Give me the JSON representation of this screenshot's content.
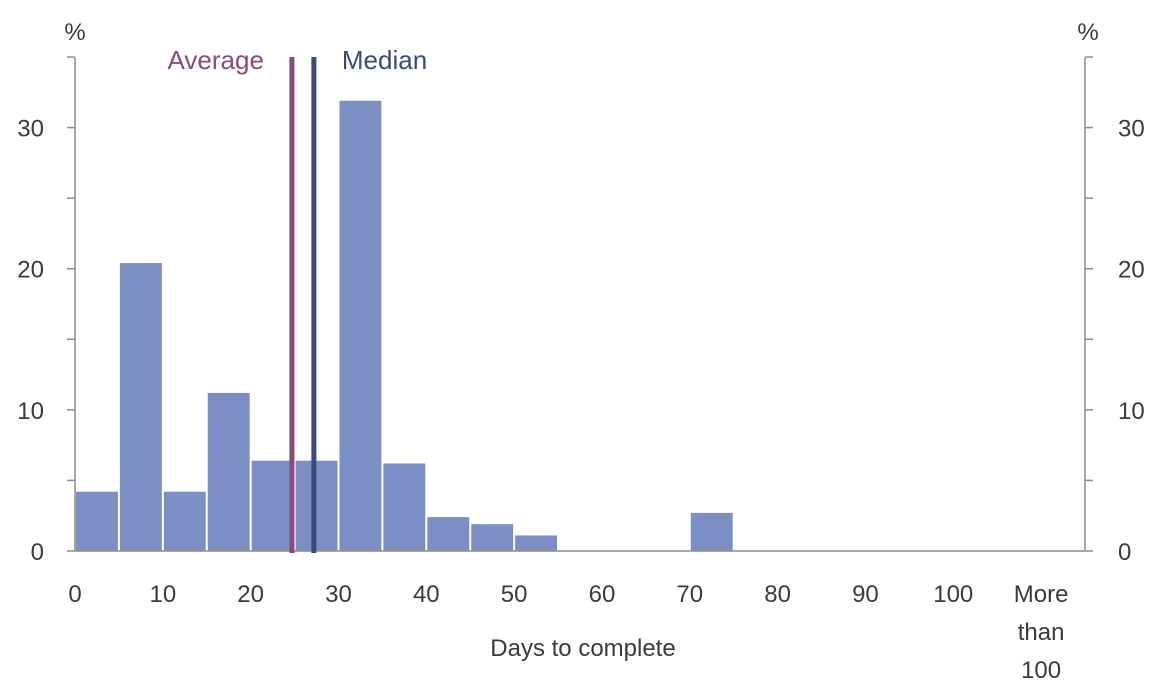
{
  "chart_data": {
    "type": "bar",
    "x_unit": "days",
    "bin_width": 5,
    "bins": [
      {
        "x_start": 0,
        "x_end": 5,
        "value": 4.2
      },
      {
        "x_start": 5,
        "x_end": 10,
        "value": 20.4
      },
      {
        "x_start": 10,
        "x_end": 15,
        "value": 4.2
      },
      {
        "x_start": 15,
        "x_end": 20,
        "value": 11.2
      },
      {
        "x_start": 20,
        "x_end": 25,
        "value": 6.4
      },
      {
        "x_start": 25,
        "x_end": 30,
        "value": 6.4
      },
      {
        "x_start": 30,
        "x_end": 35,
        "value": 31.9
      },
      {
        "x_start": 35,
        "x_end": 40,
        "value": 6.2
      },
      {
        "x_start": 40,
        "x_end": 45,
        "value": 2.4
      },
      {
        "x_start": 45,
        "x_end": 50,
        "value": 1.9
      },
      {
        "x_start": 50,
        "x_end": 55,
        "value": 1.1
      },
      {
        "x_start": 55,
        "x_end": 60,
        "value": 0
      },
      {
        "x_start": 60,
        "x_end": 65,
        "value": 0
      },
      {
        "x_start": 65,
        "x_end": 70,
        "value": 0
      },
      {
        "x_start": 70,
        "x_end": 75,
        "value": 2.7
      },
      {
        "x_start": 75,
        "x_end": 80,
        "value": 0
      },
      {
        "x_start": 80,
        "x_end": 85,
        "value": 0
      },
      {
        "x_start": 85,
        "x_end": 90,
        "value": 0
      },
      {
        "x_start": 90,
        "x_end": 95,
        "value": 0
      },
      {
        "x_start": 95,
        "x_end": 100,
        "value": 0
      },
      {
        "x_start": 100,
        "x_end": 105,
        "value": 0
      }
    ],
    "xlim": [
      0,
      115
    ],
    "x_ticks": [
      {
        "value": 0,
        "label": "0"
      },
      {
        "value": 10,
        "label": "10"
      },
      {
        "value": 20,
        "label": "20"
      },
      {
        "value": 30,
        "label": "30"
      },
      {
        "value": 40,
        "label": "40"
      },
      {
        "value": 50,
        "label": "50"
      },
      {
        "value": 60,
        "label": "60"
      },
      {
        "value": 70,
        "label": "70"
      },
      {
        "value": 80,
        "label": "80"
      },
      {
        "value": 90,
        "label": "90"
      },
      {
        "value": 100,
        "label": "100"
      },
      {
        "value": 110,
        "label": "More than 100"
      }
    ],
    "xlabel": "Days to complete",
    "ylim": [
      0,
      35
    ],
    "y_ticks": [
      0,
      10,
      20,
      30
    ],
    "y_unit_left": "%",
    "y_unit_right": "%",
    "reference_lines": [
      {
        "name": "Average",
        "x": 24.7,
        "color": "#8b4a7e"
      },
      {
        "name": "Median",
        "x": 27.2,
        "color": "#3b4a7a"
      }
    ],
    "bar_color": "#7b8fc4",
    "grid": false,
    "dual_y_axis": true
  }
}
